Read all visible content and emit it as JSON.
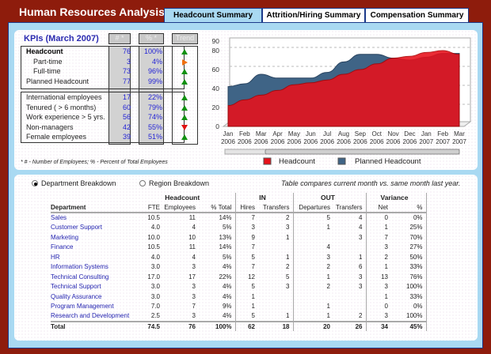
{
  "app": {
    "title": "Human Resources Analysis"
  },
  "tabs": [
    {
      "label": "Headcount Summary",
      "active": true
    },
    {
      "label": "Attrition/Hiring Summary"
    },
    {
      "label": "Compensation Summary"
    }
  ],
  "kpi": {
    "title": "KPIs (March 2007)",
    "col_num": "# *",
    "col_pct": "% *",
    "col_trend": "Trend",
    "group1": [
      {
        "label": "Headcount",
        "num": "76",
        "pct": "100%",
        "trend": "up",
        "bold": true
      },
      {
        "label": "Part-time",
        "num": "3",
        "pct": "4%",
        "trend": "flat",
        "indent": true
      },
      {
        "label": "Full-time",
        "num": "73",
        "pct": "96%",
        "trend": "up",
        "indent": true
      },
      {
        "label": "Planned Headcount",
        "num": "77",
        "pct": "99%",
        "trend": "up"
      }
    ],
    "group2": [
      {
        "label": "International employees",
        "num": "17",
        "pct": "22%",
        "trend": "up"
      },
      {
        "label": "Tenured ( > 6 months)",
        "num": "60",
        "pct": "79%",
        "trend": "up"
      },
      {
        "label": "Work experience > 5 yrs.",
        "num": "56",
        "pct": "74%",
        "trend": "up"
      },
      {
        "label": "Non-managers",
        "num": "42",
        "pct": "55%",
        "trend": "down"
      },
      {
        "label": "Female employees",
        "num": "39",
        "pct": "51%",
        "trend": "up"
      }
    ],
    "footnote": "* # - Number of Employees; % - Percent of Total Employees"
  },
  "colors": {
    "headcount": "#e8101a",
    "planned": "#3f6486"
  },
  "chart_data": {
    "type": "area",
    "x": [
      "Jan 2006",
      "Feb 2006",
      "Mar 2006",
      "Apr 2006",
      "May 2006",
      "Jun 2006",
      "Jul 2006",
      "Aug 2006",
      "Sep 2006",
      "Oct 2006",
      "Nov 2006",
      "Dec 2006",
      "Jan 2007",
      "Feb 2007",
      "Mar 2007"
    ],
    "ylim": [
      0,
      90
    ],
    "yticks": [
      0,
      20,
      40,
      60,
      80,
      90
    ],
    "series": [
      {
        "name": "Planned Headcount",
        "values": [
          42,
          45,
          55,
          51,
          51,
          51,
          57,
          68,
          76,
          76,
          72,
          70,
          73,
          77,
          77
        ]
      },
      {
        "name": "Headcount",
        "values": [
          22,
          28,
          33,
          38,
          44,
          46,
          49,
          55,
          60,
          66,
          72,
          74,
          78,
          80,
          76
        ]
      }
    ],
    "legend": "bottom"
  },
  "breakdown": {
    "options": [
      {
        "label": "Department Breakdown",
        "selected": true
      },
      {
        "label": "Region Breakdown",
        "selected": false
      }
    ],
    "note": "Table compares current month vs. same month last year.",
    "groups": [
      "Headcount",
      "IN",
      "OUT",
      "Variance"
    ],
    "headers": [
      "Department",
      "FTE",
      "Employees",
      "% Total",
      "Hires",
      "Transfers",
      "Departures",
      "Transfers",
      "Net",
      "%"
    ],
    "rows": [
      [
        "Sales",
        "10.5",
        "11",
        "14%",
        "7",
        "2",
        "5",
        "4",
        "0",
        "0%"
      ],
      [
        "Customer Support",
        "4.0",
        "4",
        "5%",
        "3",
        "3",
        "1",
        "4",
        "1",
        "25%"
      ],
      [
        "Marketing",
        "10.0",
        "10",
        "13%",
        "9",
        "1",
        "",
        "3",
        "7",
        "70%"
      ],
      [
        "Finance",
        "10.5",
        "11",
        "14%",
        "7",
        "",
        "4",
        "",
        "3",
        "27%"
      ],
      [
        "HR",
        "4.0",
        "4",
        "5%",
        "5",
        "1",
        "3",
        "1",
        "2",
        "50%"
      ],
      [
        "Information Systems",
        "3.0",
        "3",
        "4%",
        "7",
        "2",
        "2",
        "6",
        "1",
        "33%"
      ],
      [
        "Technical Consulting",
        "17.0",
        "17",
        "22%",
        "12",
        "5",
        "1",
        "3",
        "13",
        "76%"
      ],
      [
        "Technical Support",
        "3.0",
        "3",
        "4%",
        "5",
        "3",
        "2",
        "3",
        "3",
        "100%"
      ],
      [
        "Quality Assurance",
        "3.0",
        "3",
        "4%",
        "1",
        "",
        "",
        "",
        "1",
        "33%"
      ],
      [
        "Program Management",
        "7.0",
        "7",
        "9%",
        "1",
        "",
        "1",
        "",
        "0",
        "0%"
      ],
      [
        "Research and Development",
        "2.5",
        "3",
        "4%",
        "5",
        "1",
        "1",
        "2",
        "3",
        "100%"
      ]
    ],
    "total": [
      "Total",
      "74.5",
      "76",
      "100%",
      "62",
      "18",
      "20",
      "26",
      "34",
      "45%"
    ]
  }
}
